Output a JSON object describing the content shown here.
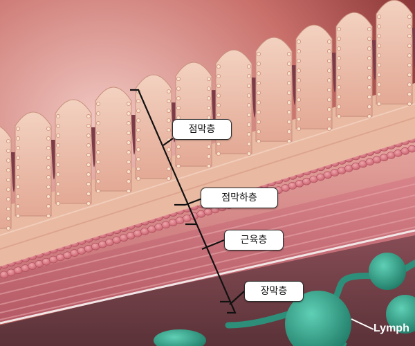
{
  "labels": {
    "mucosa": "점막층",
    "submucosa": "점막하층",
    "muscularis": "근육층",
    "serosa": "장막층",
    "lymph": "Lymph"
  },
  "colors": {
    "background_top": "#c65f5c",
    "mucosa": "#e8b9a3",
    "submucosa": "#d78a86",
    "muscle": "#c8707a",
    "lymph_node": "#2f9a83",
    "bracket": "#111111"
  }
}
